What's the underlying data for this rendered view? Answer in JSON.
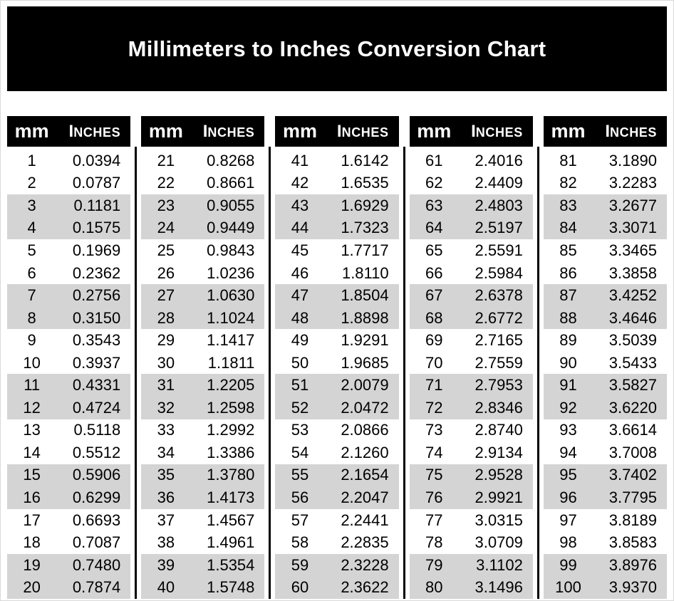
{
  "banner": {
    "title": "Millimeters to Inches Conversion Chart"
  },
  "table": {
    "header_mm": "mm",
    "header_inches": "Inches",
    "column_groups": 5,
    "rows_per_group": 20,
    "striping": "alternating pairs of rows (rows 3-4, 7-8, 11-12, 15-16, 19-20 of each group are gray)"
  },
  "colors": {
    "banner_bg": "#000000",
    "header_bg": "#000000",
    "header_text": "#ffffff",
    "body_text": "#000000",
    "stripe_gray": "#d4d4d4",
    "divider": "#000000",
    "page_bg": "#ffffff"
  },
  "chart_data": {
    "type": "table",
    "title": "Millimeters to Inches Conversion Chart",
    "columns": [
      "mm",
      "Inches"
    ],
    "layout": {
      "column_groups": 5,
      "rows_per_group": 20,
      "grid": "off",
      "row_striping": "pairs"
    },
    "rows": [
      [
        1,
        "0.0394"
      ],
      [
        2,
        "0.0787"
      ],
      [
        3,
        "0.1181"
      ],
      [
        4,
        "0.1575"
      ],
      [
        5,
        "0.1969"
      ],
      [
        6,
        "0.2362"
      ],
      [
        7,
        "0.2756"
      ],
      [
        8,
        "0.3150"
      ],
      [
        9,
        "0.3543"
      ],
      [
        10,
        "0.3937"
      ],
      [
        11,
        "0.4331"
      ],
      [
        12,
        "0.4724"
      ],
      [
        13,
        "0.5118"
      ],
      [
        14,
        "0.5512"
      ],
      [
        15,
        "0.5906"
      ],
      [
        16,
        "0.6299"
      ],
      [
        17,
        "0.6693"
      ],
      [
        18,
        "0.7087"
      ],
      [
        19,
        "0.7480"
      ],
      [
        20,
        "0.7874"
      ],
      [
        21,
        "0.8268"
      ],
      [
        22,
        "0.8661"
      ],
      [
        23,
        "0.9055"
      ],
      [
        24,
        "0.9449"
      ],
      [
        25,
        "0.9843"
      ],
      [
        26,
        "1.0236"
      ],
      [
        27,
        "1.0630"
      ],
      [
        28,
        "1.1024"
      ],
      [
        29,
        "1.1417"
      ],
      [
        30,
        "1.1811"
      ],
      [
        31,
        "1.2205"
      ],
      [
        32,
        "1.2598"
      ],
      [
        33,
        "1.2992"
      ],
      [
        34,
        "1.3386"
      ],
      [
        35,
        "1.3780"
      ],
      [
        36,
        "1.4173"
      ],
      [
        37,
        "1.4567"
      ],
      [
        38,
        "1.4961"
      ],
      [
        39,
        "1.5354"
      ],
      [
        40,
        "1.5748"
      ],
      [
        41,
        "1.6142"
      ],
      [
        42,
        "1.6535"
      ],
      [
        43,
        "1.6929"
      ],
      [
        44,
        "1.7323"
      ],
      [
        45,
        "1.7717"
      ],
      [
        46,
        "1.8110"
      ],
      [
        47,
        "1.8504"
      ],
      [
        48,
        "1.8898"
      ],
      [
        49,
        "1.9291"
      ],
      [
        50,
        "1.9685"
      ],
      [
        51,
        "2.0079"
      ],
      [
        52,
        "2.0472"
      ],
      [
        53,
        "2.0866"
      ],
      [
        54,
        "2.1260"
      ],
      [
        55,
        "2.1654"
      ],
      [
        56,
        "2.2047"
      ],
      [
        57,
        "2.2441"
      ],
      [
        58,
        "2.2835"
      ],
      [
        59,
        "2.3228"
      ],
      [
        60,
        "2.3622"
      ],
      [
        61,
        "2.4016"
      ],
      [
        62,
        "2.4409"
      ],
      [
        63,
        "2.4803"
      ],
      [
        64,
        "2.5197"
      ],
      [
        65,
        "2.5591"
      ],
      [
        66,
        "2.5984"
      ],
      [
        67,
        "2.6378"
      ],
      [
        68,
        "2.6772"
      ],
      [
        69,
        "2.7165"
      ],
      [
        70,
        "2.7559"
      ],
      [
        71,
        "2.7953"
      ],
      [
        72,
        "2.8346"
      ],
      [
        73,
        "2.8740"
      ],
      [
        74,
        "2.9134"
      ],
      [
        75,
        "2.9528"
      ],
      [
        76,
        "2.9921"
      ],
      [
        77,
        "3.0315"
      ],
      [
        78,
        "3.0709"
      ],
      [
        79,
        "3.1102"
      ],
      [
        80,
        "3.1496"
      ],
      [
        81,
        "3.1890"
      ],
      [
        82,
        "3.2283"
      ],
      [
        83,
        "3.2677"
      ],
      [
        84,
        "3.3071"
      ],
      [
        85,
        "3.3465"
      ],
      [
        86,
        "3.3858"
      ],
      [
        87,
        "3.4252"
      ],
      [
        88,
        "3.4646"
      ],
      [
        89,
        "3.5039"
      ],
      [
        90,
        "3.5433"
      ],
      [
        91,
        "3.5827"
      ],
      [
        92,
        "3.6220"
      ],
      [
        93,
        "3.6614"
      ],
      [
        94,
        "3.7008"
      ],
      [
        95,
        "3.7402"
      ],
      [
        96,
        "3.7795"
      ],
      [
        97,
        "3.8189"
      ],
      [
        98,
        "3.8583"
      ],
      [
        99,
        "3.8976"
      ],
      [
        100,
        "3.9370"
      ]
    ]
  }
}
